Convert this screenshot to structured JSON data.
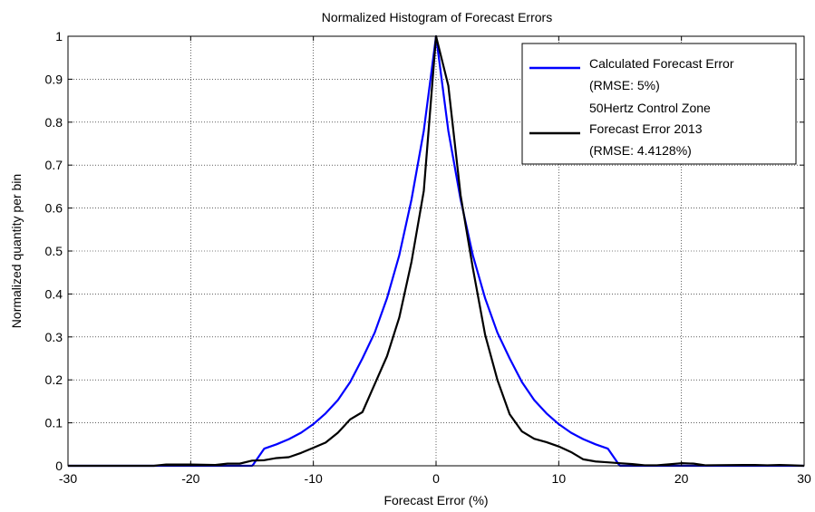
{
  "chart_data": {
    "type": "line",
    "title": "Normalized Histogram of Forecast Errors",
    "xlabel": "Forecast Error (%)",
    "ylabel": "Normalized quantity per bin",
    "xlim": [
      -30,
      30
    ],
    "ylim": [
      0,
      1
    ],
    "xticks": [
      -30,
      -20,
      -10,
      0,
      10,
      20,
      30
    ],
    "yticks": [
      0,
      0.1,
      0.2,
      0.3,
      0.4,
      0.5,
      0.6,
      0.7,
      0.8,
      0.9,
      1
    ],
    "grid": true,
    "legend_position": "top-right",
    "series": [
      {
        "name": "Calculated Forecast Error (RMSE: 5%)",
        "legend_lines": [
          "Calculated Forecast Error",
          "(RMSE: 5%)"
        ],
        "color": "#0000ff",
        "x": [
          -30,
          -15,
          -14.9,
          -14,
          -13,
          -12,
          -11,
          -10,
          -9,
          -8,
          -7,
          -6,
          -5,
          -4,
          -3,
          -2,
          -1,
          0,
          1,
          2,
          3,
          4,
          5,
          6,
          7,
          8,
          9,
          10,
          11,
          12,
          13,
          14,
          14.9,
          15,
          30
        ],
        "y": [
          0,
          0,
          0.003,
          0.04,
          0.05,
          0.062,
          0.077,
          0.097,
          0.122,
          0.153,
          0.195,
          0.25,
          0.31,
          0.39,
          0.49,
          0.62,
          0.78,
          1.0,
          0.78,
          0.62,
          0.49,
          0.39,
          0.31,
          0.25,
          0.195,
          0.153,
          0.122,
          0.097,
          0.077,
          0.062,
          0.05,
          0.04,
          0.003,
          0,
          0
        ]
      },
      {
        "name": "50Hertz Control Zone Forecast Error 2013 (RMSE: 4.4128%)",
        "legend_lines": [
          "50Hertz Control Zone",
          "Forecast Error 2013",
          "(RMSE: 4.4128%)"
        ],
        "color": "#000000",
        "x": [
          -30,
          -25,
          -23,
          -22,
          -20,
          -18,
          -17,
          -16,
          -15,
          -14,
          -13,
          -12,
          -11,
          -10,
          -9,
          -8,
          -7,
          -6,
          -5,
          -4,
          -3,
          -2,
          -1,
          0,
          1,
          2,
          3,
          4,
          5,
          6,
          7,
          8,
          9,
          10,
          11,
          12,
          13,
          14,
          15,
          16,
          17,
          18,
          20,
          21,
          22,
          25,
          26,
          27,
          28,
          29,
          30
        ],
        "y": [
          0,
          0,
          0,
          0.003,
          0.003,
          0.002,
          0.005,
          0.005,
          0.012,
          0.013,
          0.018,
          0.02,
          0.03,
          0.042,
          0.054,
          0.077,
          0.108,
          0.125,
          0.19,
          0.255,
          0.345,
          0.475,
          0.64,
          1.0,
          0.885,
          0.63,
          0.46,
          0.305,
          0.2,
          0.12,
          0.08,
          0.063,
          0.055,
          0.045,
          0.032,
          0.015,
          0.01,
          0.008,
          0.006,
          0.004,
          0.001,
          0.001,
          0.006,
          0.005,
          0.001,
          0.002,
          0.002,
          0.001,
          0.002,
          0.001,
          0
        ]
      }
    ]
  }
}
